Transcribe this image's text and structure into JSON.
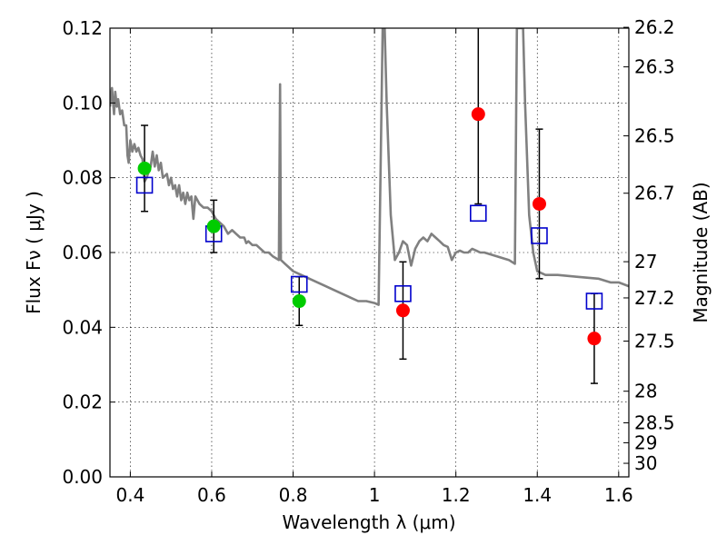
{
  "chart_data": {
    "type": "scatter",
    "xlabel": "Wavelength  λ (μm)",
    "ylabel": "Flux  Fν  ( μJy )",
    "y2label": "Magnitude (AB)",
    "xlim": [
      0.35,
      1.625
    ],
    "ylim": [
      0.0,
      0.12
    ],
    "grid": true,
    "x_ticks": [
      {
        "v": 0.4,
        "label": "0.4"
      },
      {
        "v": 0.6,
        "label": "0.6"
      },
      {
        "v": 0.8,
        "label": "0.8"
      },
      {
        "v": 1.0,
        "label": "1"
      },
      {
        "v": 1.2,
        "label": "1.2"
      },
      {
        "v": 1.4,
        "label": "1.4"
      },
      {
        "v": 1.6,
        "label": "1.6"
      }
    ],
    "y_ticks": [
      {
        "v": 0.0,
        "label": "0.00"
      },
      {
        "v": 0.02,
        "label": "0.02"
      },
      {
        "v": 0.04,
        "label": "0.04"
      },
      {
        "v": 0.06,
        "label": "0.06"
      },
      {
        "v": 0.08,
        "label": "0.08"
      },
      {
        "v": 0.1,
        "label": "0.10"
      },
      {
        "v": 0.12,
        "label": "0.12"
      }
    ],
    "mag_ticks": [
      {
        "mag": 26.2,
        "label": "26.2"
      },
      {
        "mag": 26.3,
        "label": "26.3"
      },
      {
        "mag": 26.5,
        "label": "26.5"
      },
      {
        "mag": 26.7,
        "label": "26.7"
      },
      {
        "mag": 27.0,
        "label": "27"
      },
      {
        "mag": 27.2,
        "label": "27.2"
      },
      {
        "mag": 27.5,
        "label": "27.5"
      },
      {
        "mag": 28.0,
        "label": "28"
      },
      {
        "mag": 28.5,
        "label": "28.5"
      },
      {
        "mag": 29.0,
        "label": "29"
      },
      {
        "mag": 30.0,
        "label": "30"
      }
    ],
    "model_spectrum": {
      "color": "#808080",
      "points": [
        [
          0.35,
          0.099
        ],
        [
          0.355,
          0.104
        ],
        [
          0.36,
          0.097
        ],
        [
          0.363,
          0.103
        ],
        [
          0.367,
          0.099
        ],
        [
          0.37,
          0.101
        ],
        [
          0.375,
          0.097
        ],
        [
          0.38,
          0.098
        ],
        [
          0.385,
          0.094
        ],
        [
          0.39,
          0.094
        ],
        [
          0.393,
          0.086
        ],
        [
          0.396,
          0.084
        ],
        [
          0.4,
          0.09
        ],
        [
          0.405,
          0.087
        ],
        [
          0.41,
          0.089
        ],
        [
          0.415,
          0.087
        ],
        [
          0.42,
          0.088
        ],
        [
          0.425,
          0.086
        ],
        [
          0.43,
          0.085
        ],
        [
          0.435,
          0.079
        ],
        [
          0.44,
          0.08
        ],
        [
          0.45,
          0.083
        ],
        [
          0.455,
          0.087
        ],
        [
          0.46,
          0.083
        ],
        [
          0.465,
          0.086
        ],
        [
          0.47,
          0.082
        ],
        [
          0.475,
          0.084
        ],
        [
          0.48,
          0.08
        ],
        [
          0.49,
          0.081
        ],
        [
          0.495,
          0.078
        ],
        [
          0.5,
          0.08
        ],
        [
          0.505,
          0.077
        ],
        [
          0.51,
          0.078
        ],
        [
          0.515,
          0.075
        ],
        [
          0.52,
          0.078
        ],
        [
          0.525,
          0.074
        ],
        [
          0.53,
          0.076
        ],
        [
          0.535,
          0.073
        ],
        [
          0.54,
          0.076
        ],
        [
          0.545,
          0.074
        ],
        [
          0.55,
          0.075
        ],
        [
          0.555,
          0.069
        ],
        [
          0.56,
          0.075
        ],
        [
          0.57,
          0.073
        ],
        [
          0.58,
          0.072
        ],
        [
          0.59,
          0.072
        ],
        [
          0.6,
          0.071
        ],
        [
          0.61,
          0.069
        ],
        [
          0.62,
          0.068
        ],
        [
          0.63,
          0.067
        ],
        [
          0.64,
          0.065
        ],
        [
          0.65,
          0.066
        ],
        [
          0.66,
          0.065
        ],
        [
          0.67,
          0.064
        ],
        [
          0.68,
          0.064
        ],
        [
          0.685,
          0.0625
        ],
        [
          0.69,
          0.063
        ],
        [
          0.7,
          0.062
        ],
        [
          0.71,
          0.062
        ],
        [
          0.72,
          0.061
        ],
        [
          0.73,
          0.06
        ],
        [
          0.74,
          0.06
        ],
        [
          0.75,
          0.059
        ],
        [
          0.765,
          0.058
        ],
        [
          0.768,
          0.105
        ],
        [
          0.77,
          0.058
        ],
        [
          0.78,
          0.057
        ],
        [
          0.79,
          0.056
        ],
        [
          0.8,
          0.055
        ],
        [
          0.82,
          0.054
        ],
        [
          0.84,
          0.053
        ],
        [
          0.86,
          0.052
        ],
        [
          0.88,
          0.051
        ],
        [
          0.9,
          0.05
        ],
        [
          0.92,
          0.049
        ],
        [
          0.94,
          0.048
        ],
        [
          0.96,
          0.047
        ],
        [
          0.98,
          0.047
        ],
        [
          1.0,
          0.0465
        ],
        [
          1.01,
          0.046
        ],
        [
          1.02,
          0.12
        ],
        [
          1.025,
          0.12
        ],
        [
          1.03,
          0.1
        ],
        [
          1.04,
          0.07
        ],
        [
          1.05,
          0.058
        ],
        [
          1.06,
          0.06
        ],
        [
          1.07,
          0.063
        ],
        [
          1.08,
          0.062
        ],
        [
          1.09,
          0.0565
        ],
        [
          1.1,
          0.061
        ],
        [
          1.11,
          0.063
        ],
        [
          1.12,
          0.064
        ],
        [
          1.13,
          0.063
        ],
        [
          1.14,
          0.065
        ],
        [
          1.15,
          0.064
        ],
        [
          1.16,
          0.063
        ],
        [
          1.17,
          0.062
        ],
        [
          1.18,
          0.0615
        ],
        [
          1.19,
          0.058
        ],
        [
          1.2,
          0.06
        ],
        [
          1.21,
          0.0605
        ],
        [
          1.22,
          0.06
        ],
        [
          1.23,
          0.06
        ],
        [
          1.24,
          0.061
        ],
        [
          1.25,
          0.0605
        ],
        [
          1.26,
          0.06
        ],
        [
          1.27,
          0.06
        ],
        [
          1.3,
          0.059
        ],
        [
          1.33,
          0.058
        ],
        [
          1.345,
          0.057
        ],
        [
          1.35,
          0.12
        ],
        [
          1.365,
          0.12
        ],
        [
          1.37,
          0.1
        ],
        [
          1.38,
          0.07
        ],
        [
          1.39,
          0.06
        ],
        [
          1.4,
          0.055
        ],
        [
          1.42,
          0.054
        ],
        [
          1.45,
          0.054
        ],
        [
          1.5,
          0.0535
        ],
        [
          1.55,
          0.053
        ],
        [
          1.58,
          0.052
        ],
        [
          1.6,
          0.052
        ],
        [
          1.625,
          0.051
        ]
      ]
    },
    "model_bands": {
      "marker": "open-square",
      "color": "#0000cc",
      "points": [
        {
          "x": 0.435,
          "y": 0.078
        },
        {
          "x": 0.605,
          "y": 0.065
        },
        {
          "x": 0.815,
          "y": 0.0515
        },
        {
          "x": 1.07,
          "y": 0.049
        },
        {
          "x": 1.255,
          "y": 0.0705
        },
        {
          "x": 1.405,
          "y": 0.0645
        },
        {
          "x": 1.54,
          "y": 0.047
        }
      ]
    },
    "observed_detections": {
      "marker": "filled-circle",
      "color": "#00cc00",
      "points": [
        {
          "x": 0.435,
          "y": 0.0825,
          "err": 0.0115
        },
        {
          "x": 0.605,
          "y": 0.067,
          "err": 0.007
        },
        {
          "x": 0.815,
          "y": 0.047,
          "err": 0.0065
        }
      ]
    },
    "observed_lowsnr": {
      "marker": "filled-circle",
      "color": "#ff0000",
      "points": [
        {
          "x": 1.07,
          "y": 0.0445,
          "err": 0.013
        },
        {
          "x": 1.255,
          "y": 0.097,
          "err": 0.024
        },
        {
          "x": 1.405,
          "y": 0.073,
          "err": 0.02
        },
        {
          "x": 1.54,
          "y": 0.037,
          "err": 0.012
        }
      ]
    }
  }
}
